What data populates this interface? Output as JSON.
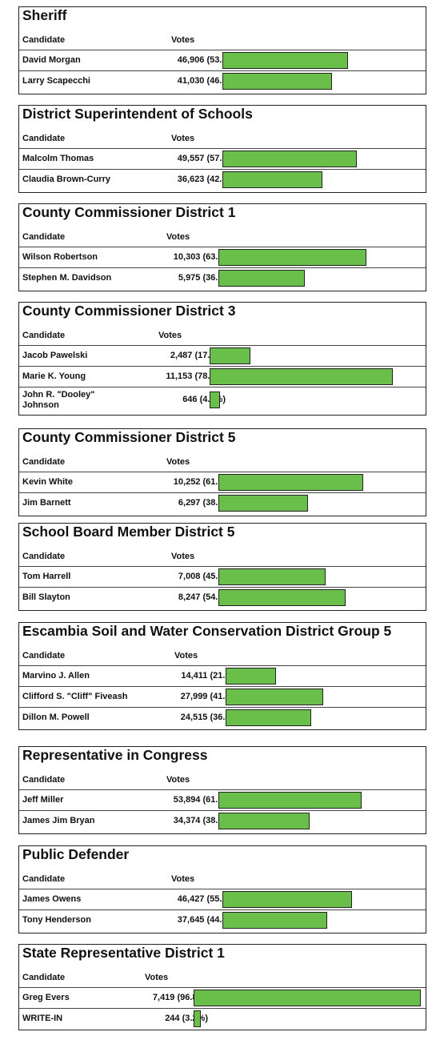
{
  "headers": {
    "candidate": "Candidate",
    "votes": "Votes"
  },
  "bar_color": "#6abf4b",
  "chart_data": [
    {
      "type": "bar",
      "title": "Sheriff",
      "categories": [
        "David Morgan",
        "Larry Scapecchi"
      ],
      "votes": [
        "46,906",
        "41,030"
      ],
      "percents": [
        "(53.3%)",
        "(46.7%)"
      ],
      "values": [
        53.3,
        46.7
      ]
    },
    {
      "type": "bar",
      "title": "District Superintendent of Schools",
      "categories": [
        "Malcolm Thomas",
        "Claudia Brown-Curry"
      ],
      "votes": [
        "49,557",
        "36,623"
      ],
      "percents": [
        "(57.5%)",
        "(42.5%)"
      ],
      "values": [
        57.5,
        42.5
      ]
    },
    {
      "type": "bar",
      "title": "County Commissioner District 1",
      "categories": [
        "Wilson Robertson",
        "Stephen M. Davidson"
      ],
      "votes": [
        "10,303",
        "5,975"
      ],
      "percents": [
        "(63.3%)",
        "(36.7%)"
      ],
      "values": [
        63.3,
        36.7
      ]
    },
    {
      "type": "bar",
      "title": "County Commissioner District 3",
      "categories": [
        "Jacob Pawelski",
        "Marie K. Young",
        "John R. \"Dooley\" Johnson"
      ],
      "votes": [
        "2,487",
        "11,153",
        "646"
      ],
      "percents": [
        "(17.4%)",
        "(78.1%)",
        "(4.5%)"
      ],
      "values": [
        17.4,
        78.1,
        4.5
      ]
    },
    {
      "type": "bar",
      "title": "County Commissioner District 5",
      "categories": [
        "Kevin White",
        "Jim Barnett"
      ],
      "votes": [
        "10,252",
        "6,297"
      ],
      "percents": [
        "(61.9%)",
        "(38.1%)"
      ],
      "values": [
        61.9,
        38.1
      ]
    },
    {
      "type": "bar",
      "title": "School Board Member District 5",
      "categories": [
        "Tom Harrell",
        "Bill Slayton"
      ],
      "votes": [
        "7,008",
        "8,247"
      ],
      "percents": [
        "(45.9%)",
        "(54.1%)"
      ],
      "values": [
        45.9,
        54.1
      ]
    },
    {
      "type": "bar",
      "title": "Escambia Soil and Water Conservation District Group 5",
      "categories": [
        "Marvino J. Allen",
        "Clifford S. \"Cliff\" Fiveash",
        "Dillon M. Powell"
      ],
      "votes": [
        "14,411",
        "27,999",
        "24,515"
      ],
      "percents": [
        "(21.5%)",
        "(41.8%)",
        "(36.6%)"
      ],
      "values": [
        21.5,
        41.8,
        36.6
      ]
    },
    {
      "type": "bar",
      "title": "Representative in Congress",
      "categories": [
        "Jeff Miller",
        "James Jim Bryan"
      ],
      "votes": [
        "53,894",
        "34,374"
      ],
      "percents": [
        "(61.1%)",
        "(38.9%)"
      ],
      "values": [
        61.1,
        38.9
      ]
    },
    {
      "type": "bar",
      "title": "Public Defender",
      "categories": [
        "James Owens",
        "Tony Henderson"
      ],
      "votes": [
        "46,427",
        "37,645"
      ],
      "percents": [
        "(55.2%)",
        "(44.8%)"
      ],
      "values": [
        55.2,
        44.8
      ]
    },
    {
      "type": "bar",
      "title": "State Representative District 1",
      "categories": [
        "Greg Evers",
        "WRITE-IN"
      ],
      "votes": [
        "7,419",
        "244"
      ],
      "percents": [
        "(96.8%)",
        "(3.2%)"
      ],
      "values": [
        96.8,
        3.2
      ]
    }
  ]
}
